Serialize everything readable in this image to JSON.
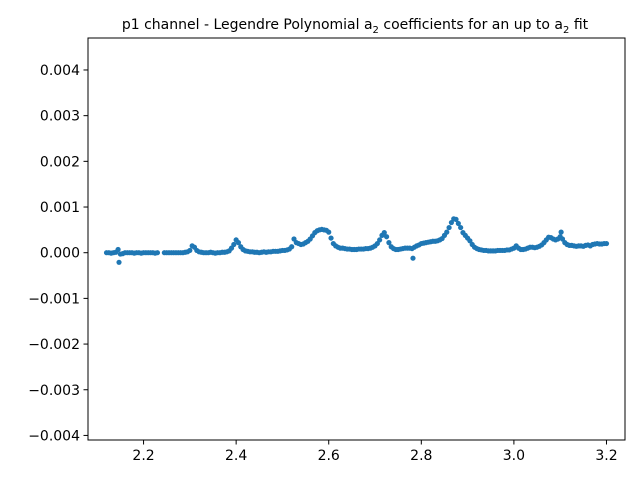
{
  "chart_data": {
    "type": "scatter",
    "title_parts": {
      "prefix": "p1 channel - Legendre Polynomial a",
      "sub1": "2",
      "middle": " coefficients for an up to a",
      "sub2": "2",
      "suffix": " fit"
    },
    "xlabel": "",
    "ylabel": "",
    "xlim": [
      2.08,
      3.24
    ],
    "ylim": [
      -0.0041,
      0.0047
    ],
    "xticks": [
      2.2,
      2.4,
      2.6,
      2.8,
      3.0,
      3.2
    ],
    "xtick_labels": [
      "2.2",
      "2.4",
      "2.6",
      "2.8",
      "3.0",
      "3.2"
    ],
    "yticks": [
      -0.004,
      -0.003,
      -0.002,
      -0.001,
      0.0,
      0.001,
      0.002,
      0.003,
      0.004
    ],
    "ytick_labels": [
      "−0.004",
      "−0.003",
      "−0.002",
      "−0.001",
      "0.000",
      "0.001",
      "0.002",
      "0.003",
      "0.004"
    ],
    "grid": false,
    "color": "#1f77b4",
    "series": [
      {
        "points": [
          [
            2.12,
            0.0
          ],
          [
            2.125,
            0.0
          ],
          [
            2.13,
            -1e-05
          ],
          [
            2.135,
            0.0
          ],
          [
            2.14,
            1e-05
          ],
          [
            2.145,
            7e-05
          ],
          [
            2.147,
            -0.00021
          ],
          [
            2.15,
            -3e-05
          ],
          [
            2.155,
            -2e-05
          ],
          [
            2.16,
            0.0
          ],
          [
            2.165,
            0.0
          ],
          [
            2.17,
            0.0
          ],
          [
            2.175,
            0.0
          ],
          [
            2.18,
            -1e-05
          ],
          [
            2.185,
            0.0
          ],
          [
            2.19,
            0.0
          ],
          [
            2.195,
            -1e-05
          ],
          [
            2.2,
            0.0
          ],
          [
            2.205,
            0.0
          ],
          [
            2.21,
            0.0
          ],
          [
            2.215,
            0.0
          ],
          [
            2.22,
            0.0
          ],
          [
            2.225,
            -1e-05
          ],
          [
            2.23,
            0.0
          ],
          [
            2.245,
            0.0
          ],
          [
            2.25,
            0.0
          ],
          [
            2.255,
            0.0
          ],
          [
            2.26,
            0.0
          ],
          [
            2.265,
            0.0
          ],
          [
            2.27,
            0.0
          ],
          [
            2.275,
            0.0
          ],
          [
            2.28,
            0.0
          ],
          [
            2.285,
            0.0
          ],
          [
            2.29,
            1e-05
          ],
          [
            2.295,
            2e-05
          ],
          [
            2.3,
            5e-05
          ],
          [
            2.305,
            0.00015
          ],
          [
            2.31,
            0.00012
          ],
          [
            2.315,
            5e-05
          ],
          [
            2.32,
            2e-05
          ],
          [
            2.325,
            1e-05
          ],
          [
            2.33,
            0.0
          ],
          [
            2.335,
            0.0
          ],
          [
            2.34,
            0.0
          ],
          [
            2.345,
            1e-05
          ],
          [
            2.35,
            0.0
          ],
          [
            2.355,
            -1e-05
          ],
          [
            2.36,
            0.0
          ],
          [
            2.365,
            0.0
          ],
          [
            2.37,
            1e-05
          ],
          [
            2.375,
            1e-05
          ],
          [
            2.38,
            2e-05
          ],
          [
            2.385,
            4e-05
          ],
          [
            2.39,
            0.0001
          ],
          [
            2.395,
            0.00018
          ],
          [
            2.4,
            0.00028
          ],
          [
            2.405,
            0.00022
          ],
          [
            2.41,
            0.00013
          ],
          [
            2.415,
            7e-05
          ],
          [
            2.42,
            4e-05
          ],
          [
            2.425,
            3e-05
          ],
          [
            2.43,
            2e-05
          ],
          [
            2.435,
            2e-05
          ],
          [
            2.44,
            1e-05
          ],
          [
            2.445,
            1e-05
          ],
          [
            2.45,
            0.0
          ],
          [
            2.455,
            1e-05
          ],
          [
            2.46,
            2e-05
          ],
          [
            2.465,
            1e-05
          ],
          [
            2.47,
            2e-05
          ],
          [
            2.475,
            2e-05
          ],
          [
            2.48,
            3e-05
          ],
          [
            2.485,
            3e-05
          ],
          [
            2.49,
            3e-05
          ],
          [
            2.495,
            4e-05
          ],
          [
            2.5,
            5e-05
          ],
          [
            2.505,
            5e-05
          ],
          [
            2.51,
            6e-05
          ],
          [
            2.515,
            8e-05
          ],
          [
            2.52,
            0.00013
          ],
          [
            2.525,
            0.0003
          ],
          [
            2.53,
            0.00022
          ],
          [
            2.535,
            0.0002
          ],
          [
            2.54,
            0.00018
          ],
          [
            2.545,
            0.00019
          ],
          [
            2.55,
            0.00022
          ],
          [
            2.555,
            0.00025
          ],
          [
            2.56,
            0.0003
          ],
          [
            2.565,
            0.00037
          ],
          [
            2.57,
            0.00044
          ],
          [
            2.575,
            0.00048
          ],
          [
            2.58,
            0.0005
          ],
          [
            2.585,
            0.00051
          ],
          [
            2.59,
            0.0005
          ],
          [
            2.595,
            0.00049
          ],
          [
            2.6,
            0.00045
          ],
          [
            2.605,
            0.00032
          ],
          [
            2.61,
            0.0002
          ],
          [
            2.615,
            0.00015
          ],
          [
            2.62,
            0.00012
          ],
          [
            2.625,
            0.0001
          ],
          [
            2.63,
            0.0001
          ],
          [
            2.635,
            9e-05
          ],
          [
            2.64,
            8e-05
          ],
          [
            2.645,
            8e-05
          ],
          [
            2.65,
            7e-05
          ],
          [
            2.655,
            7e-05
          ],
          [
            2.66,
            7e-05
          ],
          [
            2.665,
            8e-05
          ],
          [
            2.67,
            8e-05
          ],
          [
            2.675,
            8e-05
          ],
          [
            2.68,
            9e-05
          ],
          [
            2.685,
            9e-05
          ],
          [
            2.69,
            0.0001
          ],
          [
            2.695,
            0.00012
          ],
          [
            2.7,
            0.00015
          ],
          [
            2.705,
            0.0002
          ],
          [
            2.71,
            0.00028
          ],
          [
            2.715,
            0.00038
          ],
          [
            2.72,
            0.00044
          ],
          [
            2.725,
            0.00035
          ],
          [
            2.73,
            0.00022
          ],
          [
            2.735,
            0.00013
          ],
          [
            2.74,
            9e-05
          ],
          [
            2.745,
            7e-05
          ],
          [
            2.75,
            7e-05
          ],
          [
            2.755,
            8e-05
          ],
          [
            2.76,
            9e-05
          ],
          [
            2.765,
            0.0001
          ],
          [
            2.77,
            0.0001
          ],
          [
            2.775,
            0.0001
          ],
          [
            2.78,
            9e-05
          ],
          [
            2.782,
            -0.00012
          ],
          [
            2.785,
            0.00012
          ],
          [
            2.79,
            0.00015
          ],
          [
            2.795,
            0.00017
          ],
          [
            2.8,
            0.0002
          ],
          [
            2.805,
            0.00021
          ],
          [
            2.81,
            0.00022
          ],
          [
            2.815,
            0.00023
          ],
          [
            2.82,
            0.00024
          ],
          [
            2.825,
            0.00025
          ],
          [
            2.83,
            0.00025
          ],
          [
            2.835,
            0.00026
          ],
          [
            2.84,
            0.00028
          ],
          [
            2.845,
            0.00031
          ],
          [
            2.85,
            0.00038
          ],
          [
            2.855,
            0.00045
          ],
          [
            2.86,
            0.00055
          ],
          [
            2.865,
            0.00066
          ],
          [
            2.87,
            0.00074
          ],
          [
            2.875,
            0.00073
          ],
          [
            2.88,
            0.00064
          ],
          [
            2.885,
            0.00055
          ],
          [
            2.89,
            0.00044
          ],
          [
            2.895,
            0.00038
          ],
          [
            2.9,
            0.00032
          ],
          [
            2.905,
            0.00026
          ],
          [
            2.91,
            0.00018
          ],
          [
            2.915,
            0.00012
          ],
          [
            2.92,
            9e-05
          ],
          [
            2.925,
            7e-05
          ],
          [
            2.93,
            6e-05
          ],
          [
            2.935,
            5e-05
          ],
          [
            2.94,
            5e-05
          ],
          [
            2.945,
            4e-05
          ],
          [
            2.95,
            4e-05
          ],
          [
            2.955,
            4e-05
          ],
          [
            2.96,
            4e-05
          ],
          [
            2.965,
            5e-05
          ],
          [
            2.97,
            5e-05
          ],
          [
            2.975,
            5e-05
          ],
          [
            2.98,
            5e-05
          ],
          [
            2.985,
            6e-05
          ],
          [
            2.99,
            6e-05
          ],
          [
            2.995,
            8e-05
          ],
          [
            3.0,
            0.0001
          ],
          [
            3.005,
            0.00015
          ],
          [
            3.01,
            0.0001
          ],
          [
            3.015,
            7e-05
          ],
          [
            3.02,
            7e-05
          ],
          [
            3.025,
            8e-05
          ],
          [
            3.03,
            0.0001
          ],
          [
            3.035,
            0.00012
          ],
          [
            3.04,
            0.00012
          ],
          [
            3.045,
            0.00011
          ],
          [
            3.05,
            0.00012
          ],
          [
            3.055,
            0.00014
          ],
          [
            3.06,
            0.00017
          ],
          [
            3.065,
            0.00022
          ],
          [
            3.07,
            0.00028
          ],
          [
            3.075,
            0.00034
          ],
          [
            3.08,
            0.00033
          ],
          [
            3.085,
            0.0003
          ],
          [
            3.09,
            0.00028
          ],
          [
            3.095,
            0.0003
          ],
          [
            3.1,
            0.00035
          ],
          [
            3.102,
            0.00045
          ],
          [
            3.105,
            0.0003
          ],
          [
            3.11,
            0.00022
          ],
          [
            3.115,
            0.00018
          ],
          [
            3.12,
            0.00016
          ],
          [
            3.125,
            0.00016
          ],
          [
            3.13,
            0.00015
          ],
          [
            3.135,
            0.00014
          ],
          [
            3.14,
            0.00015
          ],
          [
            3.145,
            0.00015
          ],
          [
            3.15,
            0.00014
          ],
          [
            3.155,
            0.00016
          ],
          [
            3.16,
            0.00017
          ],
          [
            3.165,
            0.00015
          ],
          [
            3.17,
            0.00018
          ],
          [
            3.175,
            0.00019
          ],
          [
            3.18,
            0.0002
          ],
          [
            3.185,
            0.00019
          ],
          [
            3.19,
            0.00019
          ],
          [
            3.195,
            0.0002
          ],
          [
            3.2,
            0.0002
          ]
        ]
      }
    ]
  }
}
